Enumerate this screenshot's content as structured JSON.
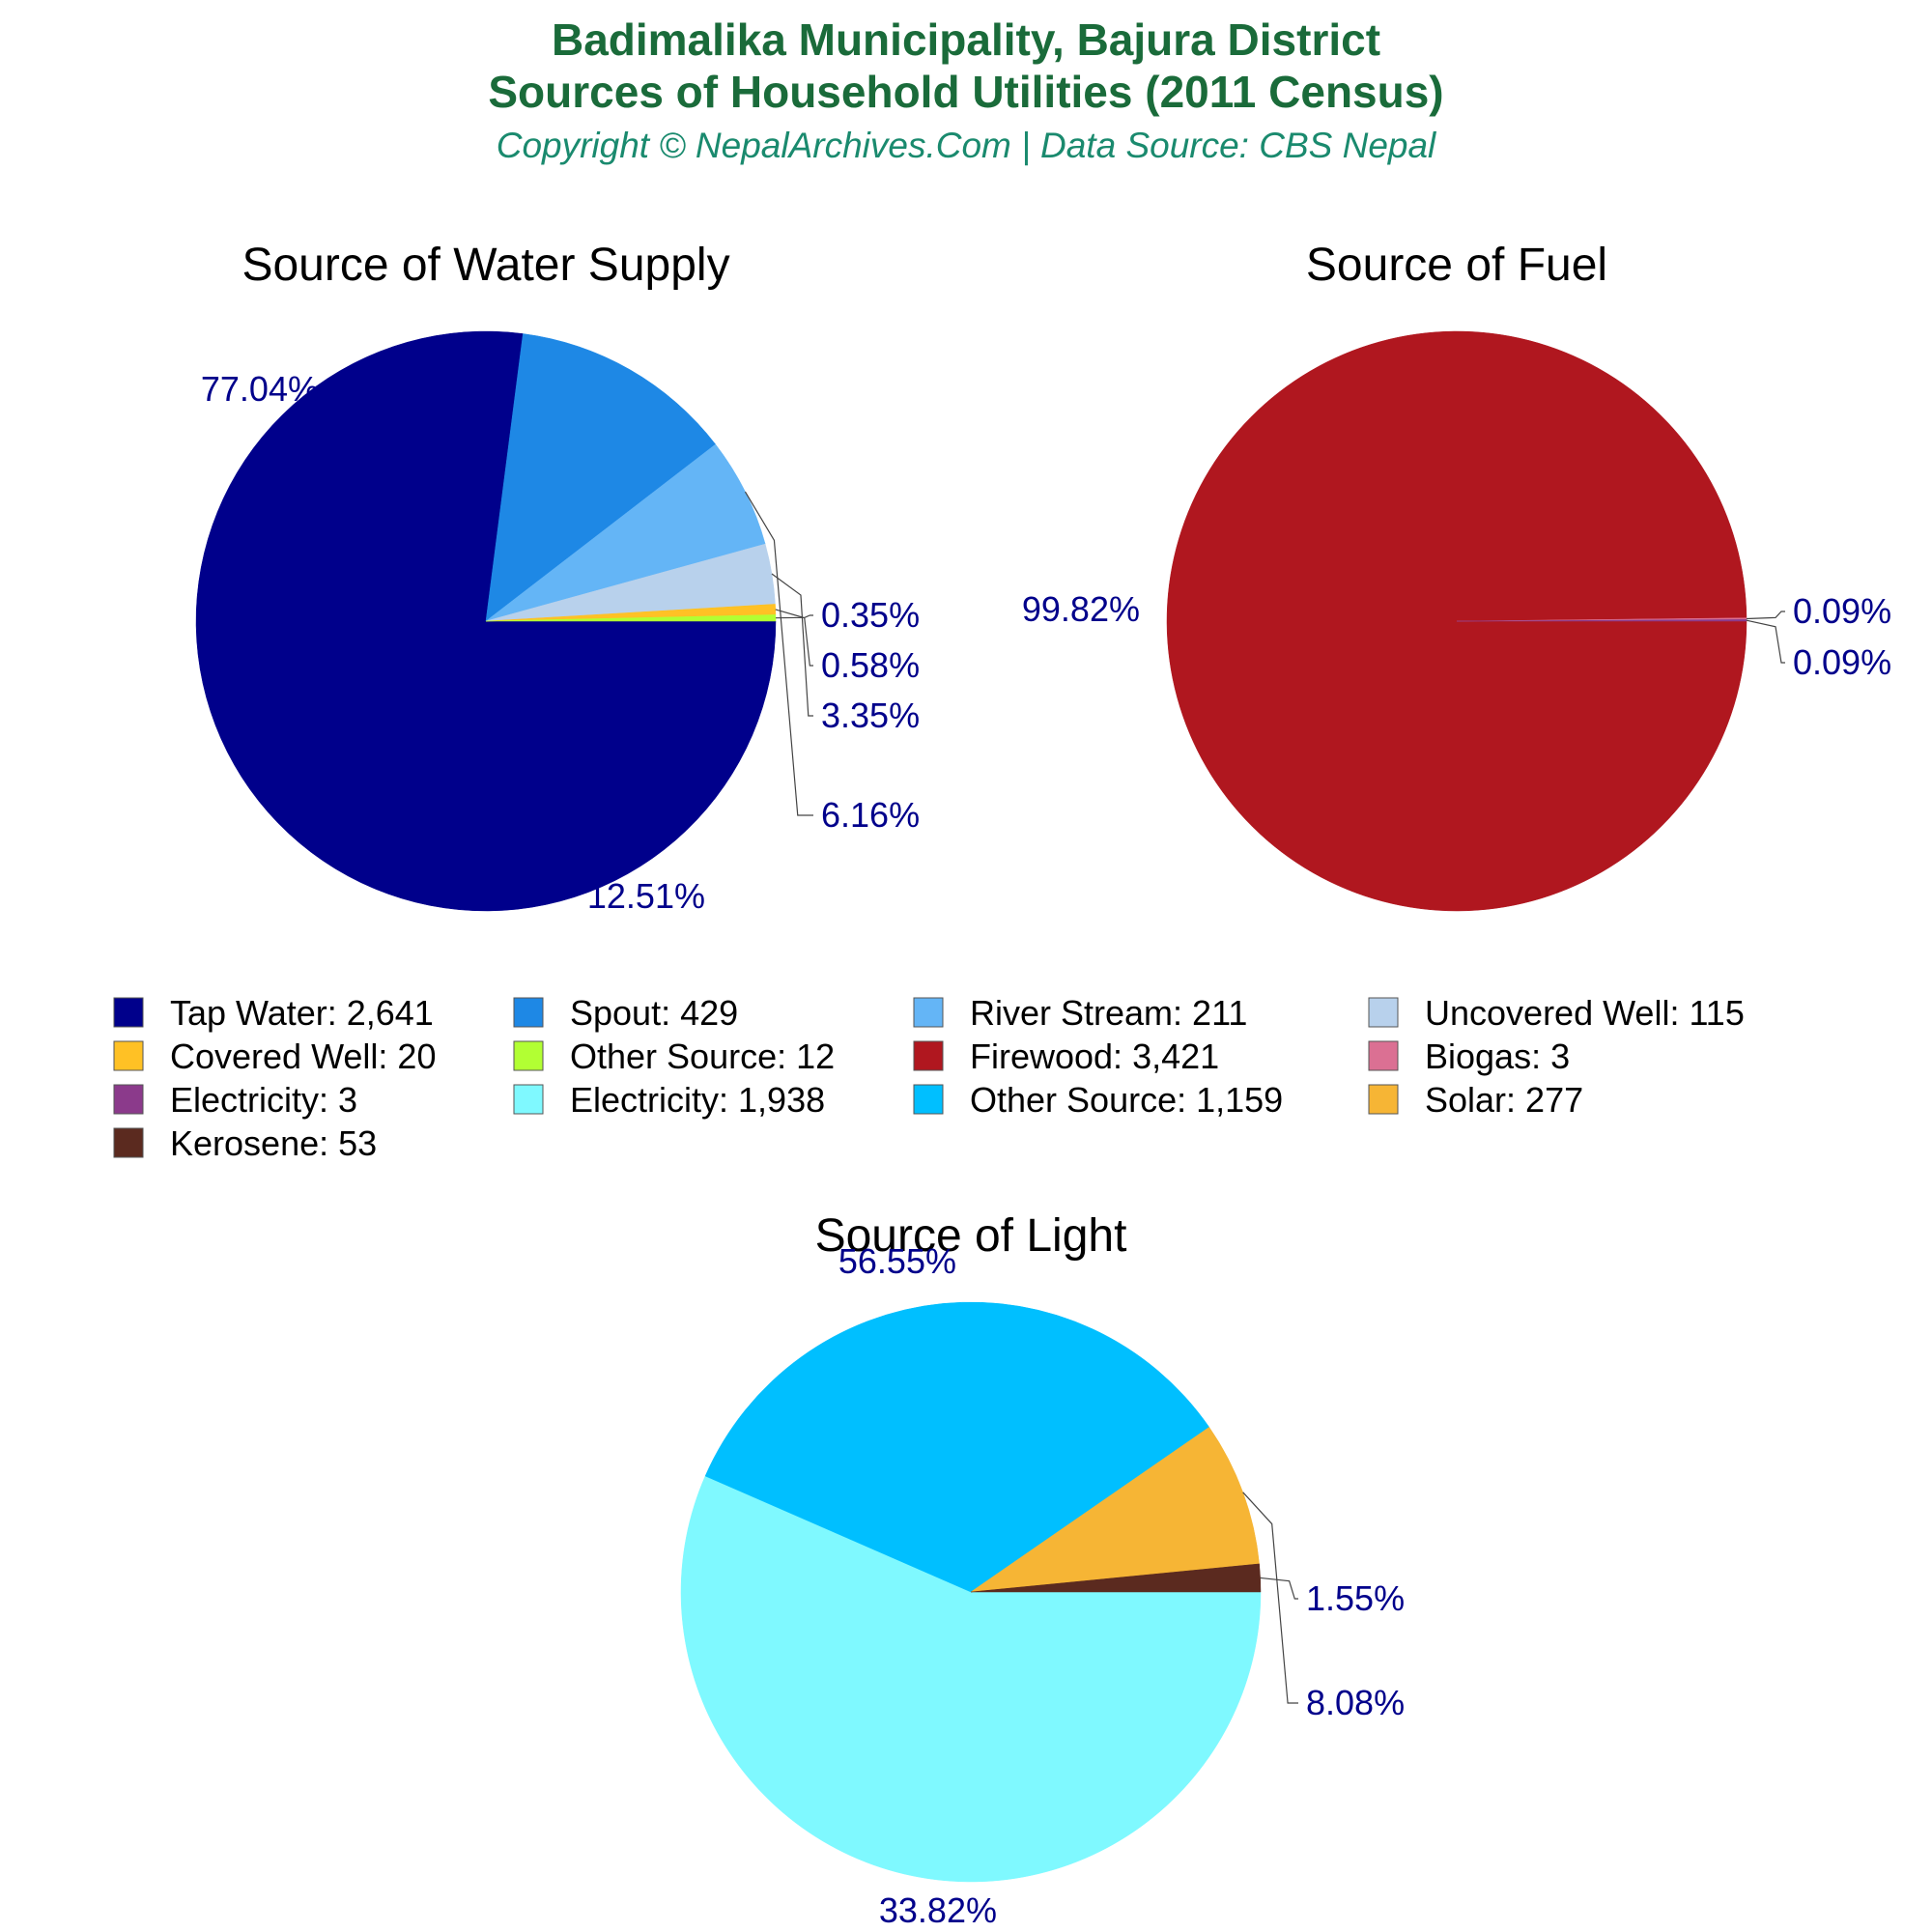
{
  "header": {
    "title_line1": "Badimalika Municipality, Bajura District",
    "title_line2": "Sources of Household Utilities (2011 Census)",
    "subtitle": "Copyright © NepalArchives.Com | Data Source: CBS Nepal"
  },
  "colors": {
    "title": "#1a6b3a",
    "subtitle": "#1a8a6e",
    "pct_label": "#00008b",
    "leader_line": "#444444"
  },
  "chart_data": [
    {
      "type": "pie",
      "title": "Source of Water Supply",
      "slices": [
        {
          "label": "Tap Water",
          "value": 2641,
          "percent_label": "77.04%",
          "color": "#00008b"
        },
        {
          "label": "Spout",
          "value": 429,
          "percent_label": "12.51%",
          "color": "#1e88e5"
        },
        {
          "label": "River Stream",
          "value": 211,
          "percent_label": "6.16%",
          "color": "#64b5f6"
        },
        {
          "label": "Uncovered Well",
          "value": 115,
          "percent_label": "3.35%",
          "color": "#b8d1ec"
        },
        {
          "label": "Covered Well",
          "value": 20,
          "percent_label": "0.58%",
          "color": "#ffc125"
        },
        {
          "label": "Other Source",
          "value": 12,
          "percent_label": "0.35%",
          "color": "#b2ff33"
        }
      ]
    },
    {
      "type": "pie",
      "title": "Source of Fuel",
      "slices": [
        {
          "label": "Firewood",
          "value": 3421,
          "percent_label": "99.82%",
          "color": "#b0171f"
        },
        {
          "label": "Biogas",
          "value": 3,
          "percent_label": "0.09%",
          "color": "#db7093"
        },
        {
          "label": "Electricity",
          "value": 3,
          "percent_label": "0.09%",
          "color": "#8b3a8b"
        }
      ]
    },
    {
      "type": "pie",
      "title": "Source of Light",
      "slices": [
        {
          "label": "Electricity",
          "value": 1938,
          "percent_label": "56.55%",
          "color": "#7ff9ff"
        },
        {
          "label": "Other Source",
          "value": 1159,
          "percent_label": "33.82%",
          "color": "#00bfff"
        },
        {
          "label": "Solar",
          "value": 277,
          "percent_label": "8.08%",
          "color": "#f6b535"
        },
        {
          "label": "Kerosene",
          "value": 53,
          "percent_label": "1.55%",
          "color": "#5b2a1f"
        }
      ]
    }
  ],
  "legend": {
    "placement": "middle, between the top pies and the bottom pie",
    "items": [
      {
        "text": "Tap Water: 2,641",
        "color": "#00008b"
      },
      {
        "text": "Spout: 429",
        "color": "#1e88e5"
      },
      {
        "text": "River Stream: 211",
        "color": "#64b5f6"
      },
      {
        "text": "Uncovered Well: 115",
        "color": "#b8d1ec"
      },
      {
        "text": "Covered Well: 20",
        "color": "#ffc125"
      },
      {
        "text": "Other Source: 12",
        "color": "#b2ff33"
      },
      {
        "text": "Firewood: 3,421",
        "color": "#b0171f"
      },
      {
        "text": "Biogas: 3",
        "color": "#db7093"
      },
      {
        "text": "Electricity: 3",
        "color": "#8b3a8b"
      },
      {
        "text": "Electricity: 1,938",
        "color": "#7ff9ff"
      },
      {
        "text": "Other Source: 1,159",
        "color": "#00bfff"
      },
      {
        "text": "Solar: 277",
        "color": "#f6b535"
      },
      {
        "text": "Kerosene: 53",
        "color": "#5b2a1f"
      }
    ]
  }
}
